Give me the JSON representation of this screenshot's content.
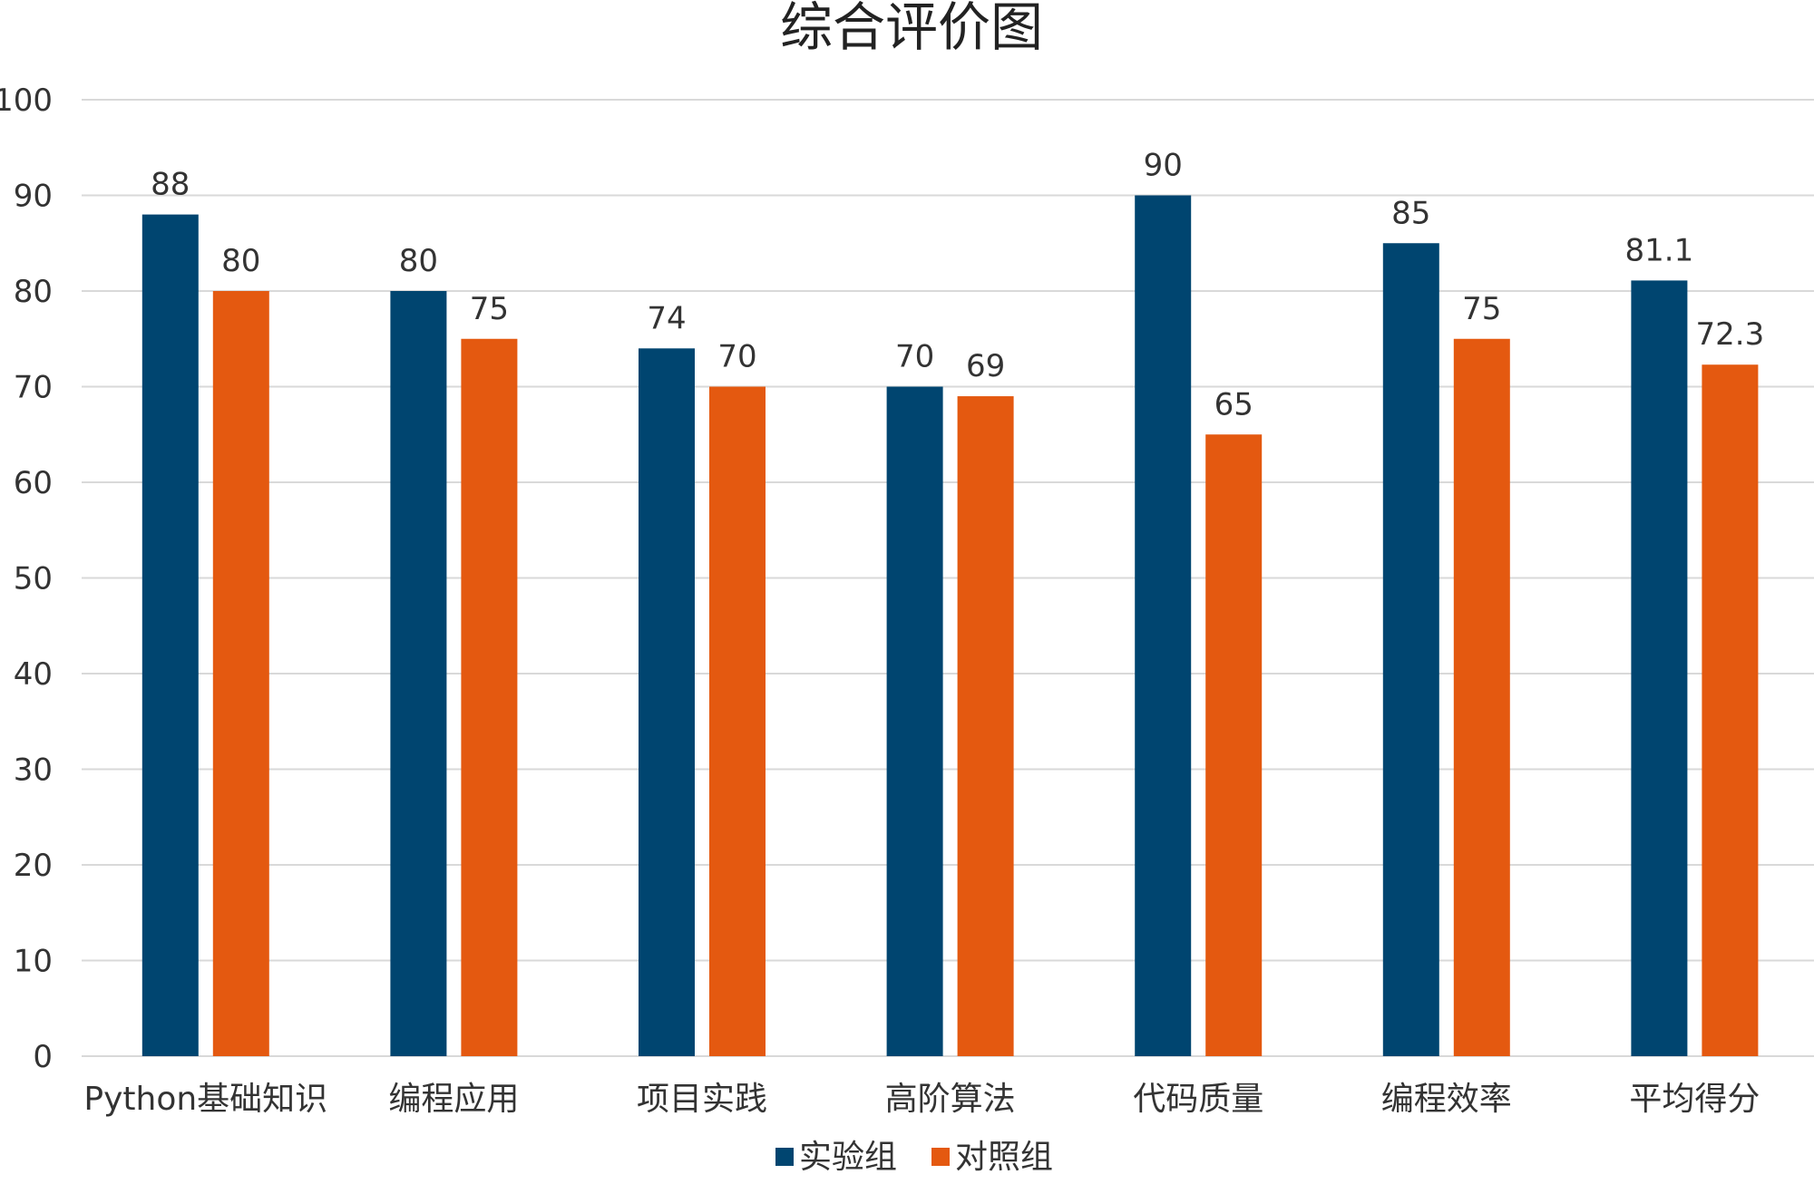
{
  "chart_data": {
    "type": "bar",
    "title": "综合评价图",
    "xlabel": "",
    "ylabel": "",
    "categories": [
      "Python基础知识",
      "编程应用",
      "项目实践",
      "高阶算法",
      "代码质量",
      "编程效率",
      "平均得分"
    ],
    "series": [
      {
        "name": "实验组",
        "color": "#004570",
        "values": [
          88,
          80,
          74,
          70,
          90,
          85,
          81.1
        ],
        "labels": [
          "88",
          "80",
          "74",
          "70",
          "90",
          "85",
          "81.1"
        ]
      },
      {
        "name": "对照组",
        "color": "#E45910",
        "values": [
          80,
          75,
          70,
          69,
          65,
          75,
          72.3
        ],
        "labels": [
          "80",
          "75",
          "70",
          "69",
          "65",
          "75",
          "72.3"
        ]
      }
    ],
    "ylim": [
      0,
      100
    ],
    "yticks": [
      "0",
      "10",
      "20",
      "30",
      "40",
      "50",
      "60",
      "70",
      "80",
      "90",
      "100"
    ],
    "grid": true,
    "gridline_color": "#D9D9D9",
    "legend_position": "bottom"
  }
}
